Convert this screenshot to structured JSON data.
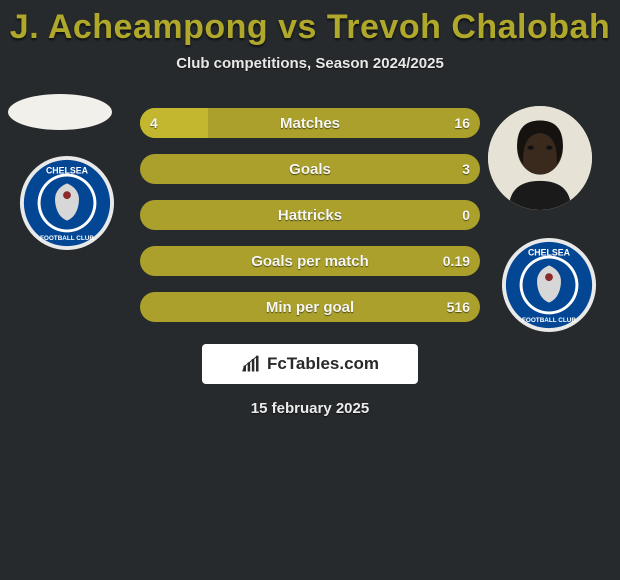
{
  "header": {
    "title": "J. Acheampong vs Trevoh Chalobah",
    "title_color": "#b0a82a",
    "subtitle": "Club competitions, Season 2024/2025"
  },
  "players": {
    "left_name": "J. Acheampong",
    "right_name": "Trevoh Chalobah"
  },
  "club": {
    "name": "Chelsea Football Club",
    "badge_outer": "#e7e7e7",
    "badge_ring": "#034694",
    "badge_center": "#034694",
    "badge_text_color": "#ffffff"
  },
  "bars": {
    "track_color": "#aaa02b",
    "fill_color": "#c3b72f",
    "text_color": "#f6f6f2",
    "items": [
      {
        "label": "Matches",
        "left": "4",
        "right": "16",
        "left_pct": 20
      },
      {
        "label": "Goals",
        "left": "",
        "right": "3",
        "left_pct": 0
      },
      {
        "label": "Hattricks",
        "left": "",
        "right": "0",
        "left_pct": 0
      },
      {
        "label": "Goals per match",
        "left": "",
        "right": "0.19",
        "left_pct": 0
      },
      {
        "label": "Min per goal",
        "left": "",
        "right": "516",
        "left_pct": 0
      }
    ]
  },
  "brand": {
    "text": "FcTables.com"
  },
  "date": "15 february 2025",
  "colors": {
    "background": "#262a2c",
    "accent": "#b0a82a"
  }
}
